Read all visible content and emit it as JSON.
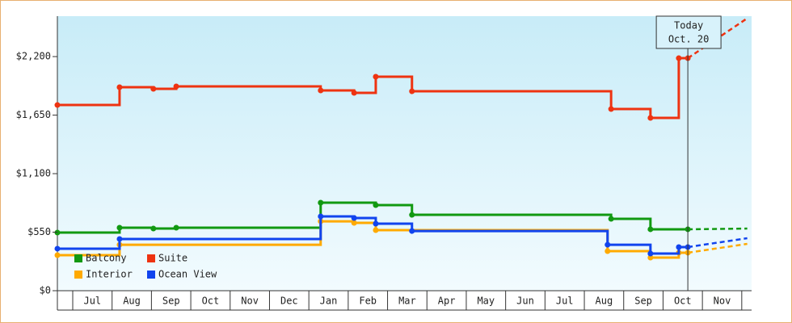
{
  "chart_data": {
    "type": "step-line",
    "categories": [
      "Jul",
      "Aug",
      "Sep",
      "Oct",
      "Nov",
      "Dec",
      "Jan",
      "Feb",
      "Mar",
      "Apr",
      "May",
      "Jun",
      "Jul",
      "Aug",
      "Sep",
      "Oct",
      "Nov"
    ],
    "xlim": [
      -0.39,
      17.25
    ],
    "ylim": [
      0,
      2580
    ],
    "yticks": [
      {
        "value": 0,
        "label": "$0"
      },
      {
        "value": 550,
        "label": "$550"
      },
      {
        "value": 1100,
        "label": "$1,100"
      },
      {
        "value": 1650,
        "label": "$1,650"
      },
      {
        "value": 2200,
        "label": "$2,200"
      }
    ],
    "today": {
      "x": 15.63,
      "label": "Today",
      "date": "Oct. 20"
    },
    "series": [
      {
        "name": "Balcony",
        "color": "#119911",
        "x": [
          -0.39,
          1.19,
          2.05,
          2.63,
          6.3,
          7.7,
          8.62,
          13.68,
          14.68,
          15.63,
          17.14
        ],
        "values": [
          546,
          592,
          584,
          592,
          827,
          804,
          713,
          675,
          577,
          577,
          584
        ]
      },
      {
        "name": "Suite",
        "color": "#ee3311",
        "x": [
          -0.39,
          1.19,
          2.05,
          2.63,
          6.3,
          7.15,
          7.7,
          8.62,
          13.68,
          14.68,
          15.4,
          15.63,
          17.14
        ],
        "values": [
          1745,
          1912,
          1897,
          1920,
          1882,
          1859,
          2011,
          1874,
          1707,
          1624,
          2185,
          2185,
          2560
        ]
      },
      {
        "name": "Interior",
        "color": "#ffaa00",
        "x": [
          -0.39,
          1.19,
          6.3,
          7.15,
          7.7,
          13.59,
          14.68,
          15.4,
          15.63,
          17.14
        ],
        "values": [
          334,
          432,
          652,
          637,
          569,
          372,
          311,
          357,
          357,
          440
        ]
      },
      {
        "name": "Ocean View",
        "color": "#1144ee",
        "x": [
          -0.39,
          1.19,
          6.3,
          7.15,
          7.7,
          8.62,
          13.59,
          14.68,
          15.4,
          15.63,
          17.14
        ],
        "values": [
          395,
          486,
          698,
          683,
          630,
          561,
          432,
          349,
          410,
          410,
          493
        ]
      }
    ]
  }
}
